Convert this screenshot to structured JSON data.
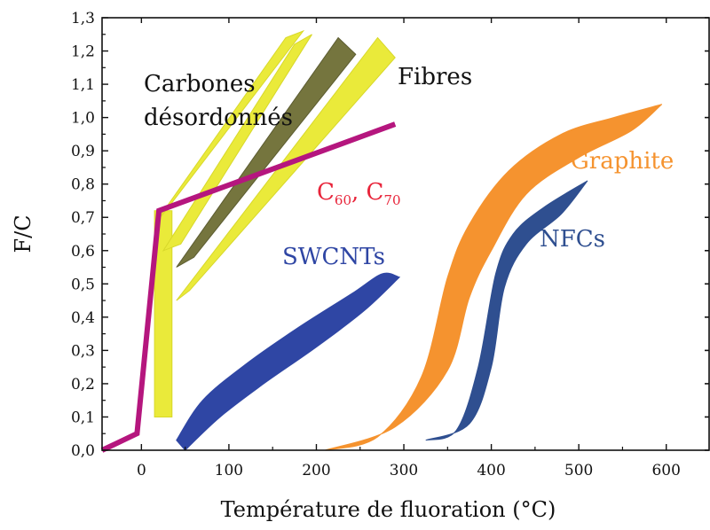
{
  "chart_data": {
    "type": "line",
    "xlabel": "Température de fluoration (°C)",
    "ylabel": "F/C",
    "xlim": [
      -45,
      650
    ],
    "ylim": [
      0,
      1.3
    ],
    "x_ticks": [
      0,
      100,
      200,
      300,
      400,
      500,
      600
    ],
    "x_tick_labels": [
      "0",
      "100",
      "200",
      "300",
      "400",
      "500",
      "600"
    ],
    "y_ticks": [
      0,
      0.1,
      0.2,
      0.3,
      0.4,
      0.5,
      0.6,
      0.7,
      0.8,
      0.9,
      1.0,
      1.1,
      1.2,
      1.3
    ],
    "y_tick_labels": [
      "0,0",
      "0,1",
      "0,2",
      "0,3",
      "0,4",
      "0,5",
      "0,6",
      "0,7",
      "0,8",
      "0,9",
      "1,0",
      "1,1",
      "1,2",
      "1,3"
    ],
    "grid": false,
    "colors": {
      "c60": "#b5167e",
      "c60_label": "#e8243a",
      "swcnts": "#2f46a4",
      "nfcs": "#2f4f90",
      "graphite": "#f5932f",
      "yellow": "#eaea3a",
      "dark_olive": "#6a6a2e"
    },
    "series": [
      {
        "name": "C60, C70",
        "kind": "line",
        "points": [
          [
            -45,
            0.0
          ],
          [
            -5,
            0.05
          ],
          [
            20,
            0.72
          ],
          [
            290,
            0.98
          ]
        ]
      },
      {
        "name": "SWCNTs",
        "kind": "band",
        "upper": [
          [
            40,
            0.03
          ],
          [
            70,
            0.15
          ],
          [
            120,
            0.26
          ],
          [
            180,
            0.37
          ],
          [
            240,
            0.47
          ],
          [
            275,
            0.53
          ],
          [
            295,
            0.52
          ]
        ],
        "lower": [
          [
            50,
            0.0
          ],
          [
            90,
            0.1
          ],
          [
            140,
            0.2
          ],
          [
            200,
            0.31
          ],
          [
            255,
            0.42
          ],
          [
            295,
            0.52
          ]
        ]
      },
      {
        "name": "Graphite",
        "kind": "band",
        "upper": [
          [
            210,
            0.0
          ],
          [
            270,
            0.04
          ],
          [
            320,
            0.22
          ],
          [
            350,
            0.52
          ],
          [
            375,
            0.68
          ],
          [
            420,
            0.84
          ],
          [
            480,
            0.95
          ],
          [
            540,
            1.0
          ],
          [
            595,
            1.04
          ]
        ],
        "lower": [
          [
            210,
            0.0
          ],
          [
            290,
            0.07
          ],
          [
            350,
            0.24
          ],
          [
            375,
            0.46
          ],
          [
            400,
            0.6
          ],
          [
            440,
            0.77
          ],
          [
            500,
            0.88
          ],
          [
            560,
            0.96
          ],
          [
            595,
            1.04
          ]
        ]
      },
      {
        "name": "NFCs",
        "kind": "band",
        "upper": [
          [
            325,
            0.03
          ],
          [
            360,
            0.06
          ],
          [
            385,
            0.25
          ],
          [
            405,
            0.53
          ],
          [
            425,
            0.65
          ],
          [
            460,
            0.73
          ],
          [
            510,
            0.81
          ]
        ],
        "lower": [
          [
            325,
            0.03
          ],
          [
            375,
            0.08
          ],
          [
            400,
            0.25
          ],
          [
            415,
            0.49
          ],
          [
            440,
            0.62
          ],
          [
            480,
            0.71
          ],
          [
            510,
            0.81
          ]
        ]
      },
      {
        "name": "Carbones désordonnés",
        "kind": "wedges",
        "polygons": [
          [
            [
              15,
              0.1
            ],
            [
              35,
              0.1
            ],
            [
              35,
              0.72
            ],
            [
              15,
              0.72
            ]
          ],
          [
            [
              15,
              0.68
            ],
            [
              28,
              0.72
            ],
            [
              185,
              1.26
            ],
            [
              165,
              1.24
            ]
          ],
          [
            [
              25,
              0.6
            ],
            [
              45,
              0.62
            ],
            [
              195,
              1.25
            ],
            [
              175,
              1.22
            ]
          ]
        ]
      },
      {
        "name": "Fibres",
        "kind": "wedges",
        "polygons": [
          [
            [
              40,
              0.45
            ],
            [
              55,
              0.48
            ],
            [
              290,
              1.18
            ],
            [
              270,
              1.24
            ]
          ],
          [
            [
              40,
              0.55
            ],
            [
              60,
              0.58
            ],
            [
              245,
              1.19
            ],
            [
              225,
              1.24
            ]
          ]
        ]
      }
    ],
    "annotations": {
      "carbones_line1": "Carbones",
      "carbones_line2": "désordonnés",
      "fibres": "Fibres",
      "c60_a": "C",
      "c60_sub": "60",
      "c60_sep": ", C",
      "c70_sub": "70",
      "graphite": "Graphite",
      "swcnts": "SWCNTs",
      "nfcs": "NFCs"
    }
  }
}
